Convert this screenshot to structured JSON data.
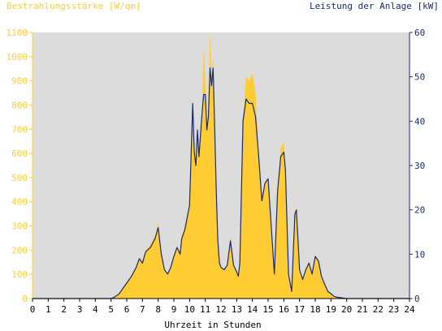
{
  "chart_data": {
    "type": "area",
    "ylabel_left": "Bestrahlungsstärke [W/qm]",
    "ylabel_right": "Leistung der Anlage [kW]",
    "xlabel": "Uhrzeit in Stunden",
    "xlim": [
      0,
      24
    ],
    "ylim_left": [
      0,
      1100
    ],
    "ylim_right": [
      0,
      60
    ],
    "x_ticks": [
      "0",
      "1",
      "2",
      "3",
      "4",
      "5",
      "6",
      "7",
      "8",
      "9",
      "10",
      "11",
      "12",
      "13",
      "14",
      "15",
      "16",
      "17",
      "18",
      "19",
      "20",
      "21",
      "22",
      "23",
      "24"
    ],
    "y_ticks_left": [
      "0",
      "100",
      "200",
      "300",
      "400",
      "500",
      "600",
      "700",
      "800",
      "900",
      "1000",
      "1100"
    ],
    "y_ticks_right": [
      "0",
      "10",
      "20",
      "30",
      "40",
      "50",
      "60"
    ],
    "grid": false,
    "colors": {
      "irradiance": "#ffcc33",
      "power": "#1a2a6e",
      "plot_bg": "#dcdcdc",
      "left_axis": "#ffcc33",
      "right_axis": "#1a2a6e"
    },
    "series": [
      {
        "name": "Bestrahlungsstärke [W/qm]",
        "axis": "left",
        "x": [
          0,
          5,
          5.2,
          5.5,
          6,
          6.3,
          6.6,
          6.8,
          7,
          7.2,
          7.5,
          7.8,
          8,
          8.2,
          8.4,
          8.6,
          8.8,
          9,
          9.2,
          9.4,
          9.5,
          9.7,
          10,
          10.2,
          10.3,
          10.4,
          10.5,
          10.6,
          10.8,
          10.9,
          11,
          11.1,
          11.2,
          11.3,
          11.4,
          11.5,
          11.6,
          11.7,
          11.8,
          11.9,
          12,
          12.2,
          12.4,
          12.6,
          12.8,
          13,
          13.1,
          13.2,
          13.4,
          13.6,
          13.8,
          14,
          14.2,
          14.4,
          14.6,
          14.8,
          15,
          15.2,
          15.4,
          15.6,
          15.8,
          16,
          16.1,
          16.3,
          16.5,
          16.7,
          16.8,
          17,
          17.2,
          17.4,
          17.6,
          17.8,
          18,
          18.2,
          18.4,
          18.6,
          18.8,
          19,
          19.2,
          19.4,
          19.6,
          19.8,
          20,
          20.5,
          21,
          24
        ],
        "values": [
          0,
          0,
          5,
          20,
          70,
          90,
          130,
          170,
          150,
          200,
          220,
          260,
          310,
          180,
          120,
          100,
          130,
          180,
          220,
          190,
          260,
          300,
          400,
          820,
          600,
          550,
          720,
          600,
          780,
          1040,
          880,
          700,
          760,
          1100,
          920,
          1000,
          700,
          450,
          250,
          150,
          130,
          120,
          140,
          260,
          140,
          110,
          90,
          150,
          750,
          920,
          900,
          930,
          850,
          600,
          400,
          480,
          500,
          300,
          100,
          450,
          620,
          650,
          550,
          100,
          30,
          350,
          380,
          120,
          80,
          120,
          150,
          100,
          180,
          160,
          90,
          60,
          30,
          20,
          10,
          5,
          3,
          1,
          0,
          0,
          0,
          0
        ]
      },
      {
        "name": "Leistung der Anlage [kW]",
        "axis": "right",
        "x": [
          0,
          5,
          5.2,
          5.5,
          6,
          6.3,
          6.6,
          6.8,
          7,
          7.2,
          7.5,
          7.8,
          8,
          8.2,
          8.4,
          8.6,
          8.8,
          9,
          9.2,
          9.4,
          9.5,
          9.7,
          10,
          10.2,
          10.3,
          10.4,
          10.5,
          10.6,
          10.8,
          10.9,
          11,
          11.1,
          11.2,
          11.3,
          11.4,
          11.5,
          11.6,
          11.7,
          11.8,
          11.9,
          12,
          12.2,
          12.4,
          12.6,
          12.8,
          13,
          13.1,
          13.2,
          13.4,
          13.6,
          13.8,
          14,
          14.2,
          14.4,
          14.6,
          14.8,
          15,
          15.2,
          15.4,
          15.6,
          15.8,
          16,
          16.1,
          16.3,
          16.5,
          16.7,
          16.8,
          17,
          17.2,
          17.4,
          17.6,
          17.8,
          18,
          18.2,
          18.4,
          18.6,
          18.8,
          19,
          19.2,
          19.4,
          19.6,
          19.8,
          20,
          20.5,
          21,
          24
        ],
        "values": [
          0,
          0,
          0.3,
          1,
          3.5,
          5,
          7,
          9,
          8,
          10.5,
          11.5,
          13.5,
          16,
          10,
          6.5,
          5.5,
          7,
          9.5,
          11.5,
          10,
          13.5,
          15.5,
          21,
          44,
          33,
          30,
          38,
          32,
          42,
          46,
          46,
          38,
          41,
          52,
          48,
          52,
          38,
          24,
          13,
          8,
          7,
          6.5,
          7.5,
          13,
          7.5,
          6,
          5,
          8,
          40,
          45,
          44,
          44,
          41,
          32,
          22,
          26,
          27,
          16,
          5.5,
          24,
          32,
          33,
          29,
          5.5,
          1.6,
          19,
          20,
          6.5,
          4.3,
          6.5,
          8,
          5.5,
          9.5,
          8.5,
          5,
          3.2,
          1.6,
          1.1,
          0.5,
          0.3,
          0.2,
          0.1,
          0,
          0,
          0,
          0
        ]
      }
    ]
  }
}
